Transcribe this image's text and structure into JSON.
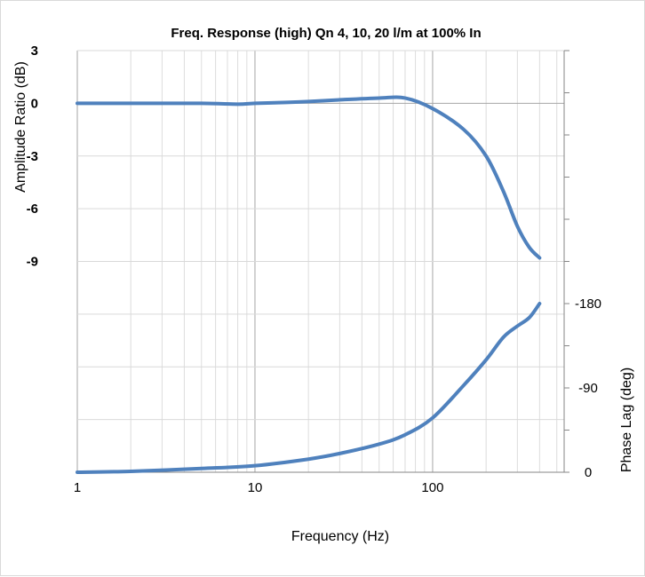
{
  "chart_data": {
    "type": "line",
    "title": "Freq. Response (high) Qn 4, 10, 20 l/m at 100% In",
    "xlabel": "Frequency (Hz)",
    "ylabel_left": "Amplitude Ratio (dB)",
    "ylabel_right": "Phase Lag (deg)",
    "x_scale": "log",
    "xlim": [
      1,
      550
    ],
    "x_ticks": [
      1,
      10,
      100
    ],
    "x_tick_labels": [
      "1",
      "10",
      "100"
    ],
    "y_left_lim": [
      -21,
      3
    ],
    "y_left_ticks": [
      3,
      0,
      -3,
      -6,
      -9
    ],
    "y_left_tick_labels": [
      "3",
      "0",
      "-3",
      "-6",
      "-9"
    ],
    "y_right_lim": [
      0,
      450
    ],
    "y_right_ticks": [
      180,
      90,
      0
    ],
    "y_right_tick_labels": [
      "-180",
      "-90",
      "0"
    ],
    "grid": true,
    "series": [
      {
        "axis": "left",
        "color": "#4F81BD",
        "x": [
          1,
          2,
          5,
          8,
          10,
          15,
          20,
          30,
          50,
          70,
          100,
          150,
          200,
          250,
          300,
          350,
          400
        ],
        "y": [
          0,
          0,
          0,
          -0.05,
          0,
          0.05,
          0.1,
          0.2,
          0.3,
          0.3,
          -0.3,
          -1.5,
          -3.0,
          -5.0,
          -7.0,
          -8.2,
          -8.8
        ]
      },
      {
        "axis": "right",
        "color": "#4F81BD",
        "x": [
          1,
          2,
          5,
          10,
          20,
          30,
          50,
          70,
          100,
          150,
          200,
          250,
          300,
          350,
          400
        ],
        "y": [
          0,
          1,
          4,
          7,
          14,
          20,
          30,
          40,
          58,
          93,
          120,
          144,
          156,
          165,
          180
        ]
      }
    ]
  }
}
